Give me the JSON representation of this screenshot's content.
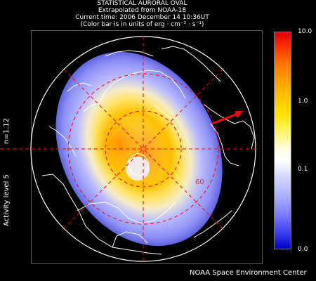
{
  "header": {
    "line1": "STATISTICAL AURORAL OVAL",
    "line2": "Extrapolated from NOAA-18",
    "line3": "Current time: 2006 December 14 10:36UT",
    "line4": "(Color bar is in units of erg · cm⁻² · s⁻¹)"
  },
  "side": {
    "n_value": "n=1.12",
    "activity": "Activity level 5"
  },
  "map": {
    "latitude_label": "60",
    "grid_color": "#ff0000",
    "coastline_color": "#ffffff",
    "sun_arrow_color": "#ff0000"
  },
  "colorbar": {
    "ticks": [
      {
        "label": "10.0"
      },
      {
        "label": "1.0"
      },
      {
        "label": "0.1"
      },
      {
        "label": "0.0"
      }
    ],
    "top_color": "#e10000",
    "bottom_color": "#0000c8"
  },
  "footer": {
    "credit": "NOAA Space Environment Center"
  }
}
